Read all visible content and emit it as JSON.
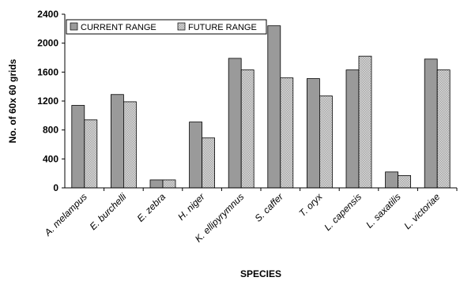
{
  "chart_data": {
    "type": "bar",
    "title": "",
    "xlabel": "SPECIES",
    "ylabel": "No. of 60x 60 grids",
    "ylim": [
      0,
      2400
    ],
    "yticks": [
      0,
      400,
      800,
      1200,
      1600,
      2000,
      2400
    ],
    "grid": false,
    "legend_position": "top-left",
    "categories": [
      "A. melampus",
      "E. burchelli",
      "E. zebra",
      "H. niger",
      "K. ellipyrymnus",
      "S. caffer",
      "T. oryx",
      "L. capensis",
      "L. saxatilis",
      "L. victoriae"
    ],
    "series": [
      {
        "name": "CURRENT RANGE",
        "color": "#9a9a9a",
        "pattern": "solid",
        "values": [
          1140,
          1290,
          110,
          910,
          1790,
          2240,
          1510,
          1630,
          220,
          1780
        ]
      },
      {
        "name": "FUTURE RANGE",
        "color": "#c8c8c8",
        "pattern": "checkered",
        "values": [
          940,
          1190,
          110,
          690,
          1630,
          1520,
          1270,
          1820,
          170,
          1630
        ]
      }
    ]
  }
}
